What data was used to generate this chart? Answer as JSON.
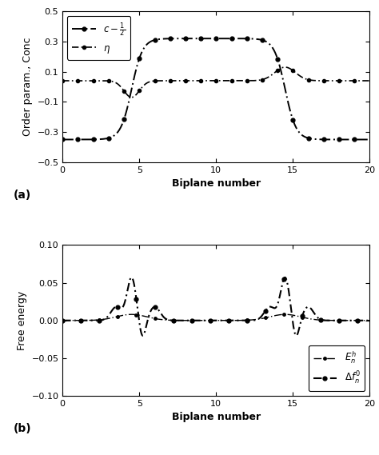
{
  "xlabel": "Biplane number",
  "ylabel_a": "Order param., Conc",
  "ylabel_b": "Free energy",
  "xlim": [
    0,
    20
  ],
  "ylim_a": [
    -0.5,
    0.5
  ],
  "ylim_b": [
    -0.1,
    0.1
  ],
  "yticks_a": [
    -0.5,
    -0.3,
    -0.1,
    0.1,
    0.3,
    0.5
  ],
  "yticks_b": [
    -0.1,
    -0.05,
    0,
    0.05,
    0.1
  ],
  "xticks": [
    0,
    5,
    10,
    15,
    20
  ],
  "line_color": "#000000",
  "background_color": "#ffffff",
  "apb1": 4.5,
  "apb2": 14.5,
  "c_half_low": -0.35,
  "c_half_high": 0.32,
  "eta_flat": 0.04,
  "sigmoid_k": 2.8
}
